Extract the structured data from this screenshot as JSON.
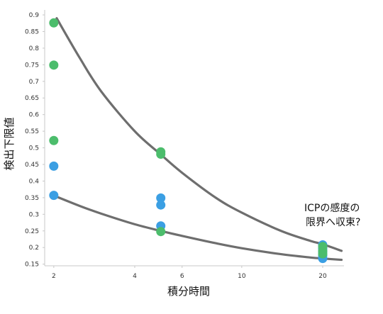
{
  "chart_data": {
    "type": "scatter",
    "title": "",
    "xlabel": "積分時間",
    "ylabel": "検出下限値",
    "x_scale": "log",
    "xlim": [
      1.85,
      24
    ],
    "ylim": [
      0.145,
      0.915
    ],
    "x_ticks": [
      2,
      4,
      6,
      10,
      20
    ],
    "x_tick_labels": [
      "2",
      "4",
      "6",
      "10",
      "20"
    ],
    "y_ticks": [
      0.15,
      0.2,
      0.25,
      0.3,
      0.35,
      0.4,
      0.45,
      0.5,
      0.55,
      0.6,
      0.65,
      0.7,
      0.75,
      0.8,
      0.85,
      0.9
    ],
    "y_tick_labels": [
      "0.15",
      "0.2",
      "0.25",
      "0.3",
      "0.35",
      "0.4",
      "0.45",
      "0.5",
      "0.55",
      "0.6",
      "0.65",
      "0.7",
      "0.75",
      "0.8",
      "0.85",
      "0.9"
    ],
    "series": [
      {
        "color": "#3b9fe3",
        "points": [
          {
            "x": 2,
            "y": 0.445
          },
          {
            "x": 2,
            "y": 0.357
          },
          {
            "x": 5,
            "y": 0.349
          },
          {
            "x": 5,
            "y": 0.328
          },
          {
            "x": 5,
            "y": 0.265
          },
          {
            "x": 20,
            "y": 0.208
          },
          {
            "x": 20,
            "y": 0.197
          },
          {
            "x": 20,
            "y": 0.187
          },
          {
            "x": 20,
            "y": 0.176
          },
          {
            "x": 20,
            "y": 0.167
          }
        ]
      },
      {
        "color": "#4cbd6c",
        "points": [
          {
            "x": 2,
            "y": 0.876
          },
          {
            "x": 2,
            "y": 0.749
          },
          {
            "x": 2,
            "y": 0.522
          },
          {
            "x": 5,
            "y": 0.488
          },
          {
            "x": 5,
            "y": 0.481
          },
          {
            "x": 5,
            "y": 0.248
          },
          {
            "x": 20,
            "y": 0.203
          },
          {
            "x": 20,
            "y": 0.19
          },
          {
            "x": 20,
            "y": 0.181
          }
        ]
      }
    ],
    "trend_lines": [
      {
        "color": "#6e6e6e",
        "points": [
          {
            "x": 2.05,
            "y": 0.89
          },
          {
            "x": 2.5,
            "y": 0.77
          },
          {
            "x": 3,
            "y": 0.67
          },
          {
            "x": 4,
            "y": 0.55
          },
          {
            "x": 5,
            "y": 0.48
          },
          {
            "x": 6,
            "y": 0.425
          },
          {
            "x": 8,
            "y": 0.35
          },
          {
            "x": 10,
            "y": 0.305
          },
          {
            "x": 14,
            "y": 0.25
          },
          {
            "x": 18,
            "y": 0.22
          },
          {
            "x": 20,
            "y": 0.21
          },
          {
            "x": 23.5,
            "y": 0.19
          }
        ]
      },
      {
        "color": "#6e6e6e",
        "points": [
          {
            "x": 1.95,
            "y": 0.36
          },
          {
            "x": 2.5,
            "y": 0.325
          },
          {
            "x": 3,
            "y": 0.302
          },
          {
            "x": 4,
            "y": 0.27
          },
          {
            "x": 5,
            "y": 0.25
          },
          {
            "x": 6,
            "y": 0.235
          },
          {
            "x": 8,
            "y": 0.213
          },
          {
            "x": 10,
            "y": 0.198
          },
          {
            "x": 14,
            "y": 0.18
          },
          {
            "x": 18,
            "y": 0.17
          },
          {
            "x": 20,
            "y": 0.167
          },
          {
            "x": 23.5,
            "y": 0.163
          }
        ]
      }
    ],
    "annotation": [
      "ICPの感度の",
      "限界へ収束?"
    ],
    "grid": false,
    "legend": "none"
  }
}
